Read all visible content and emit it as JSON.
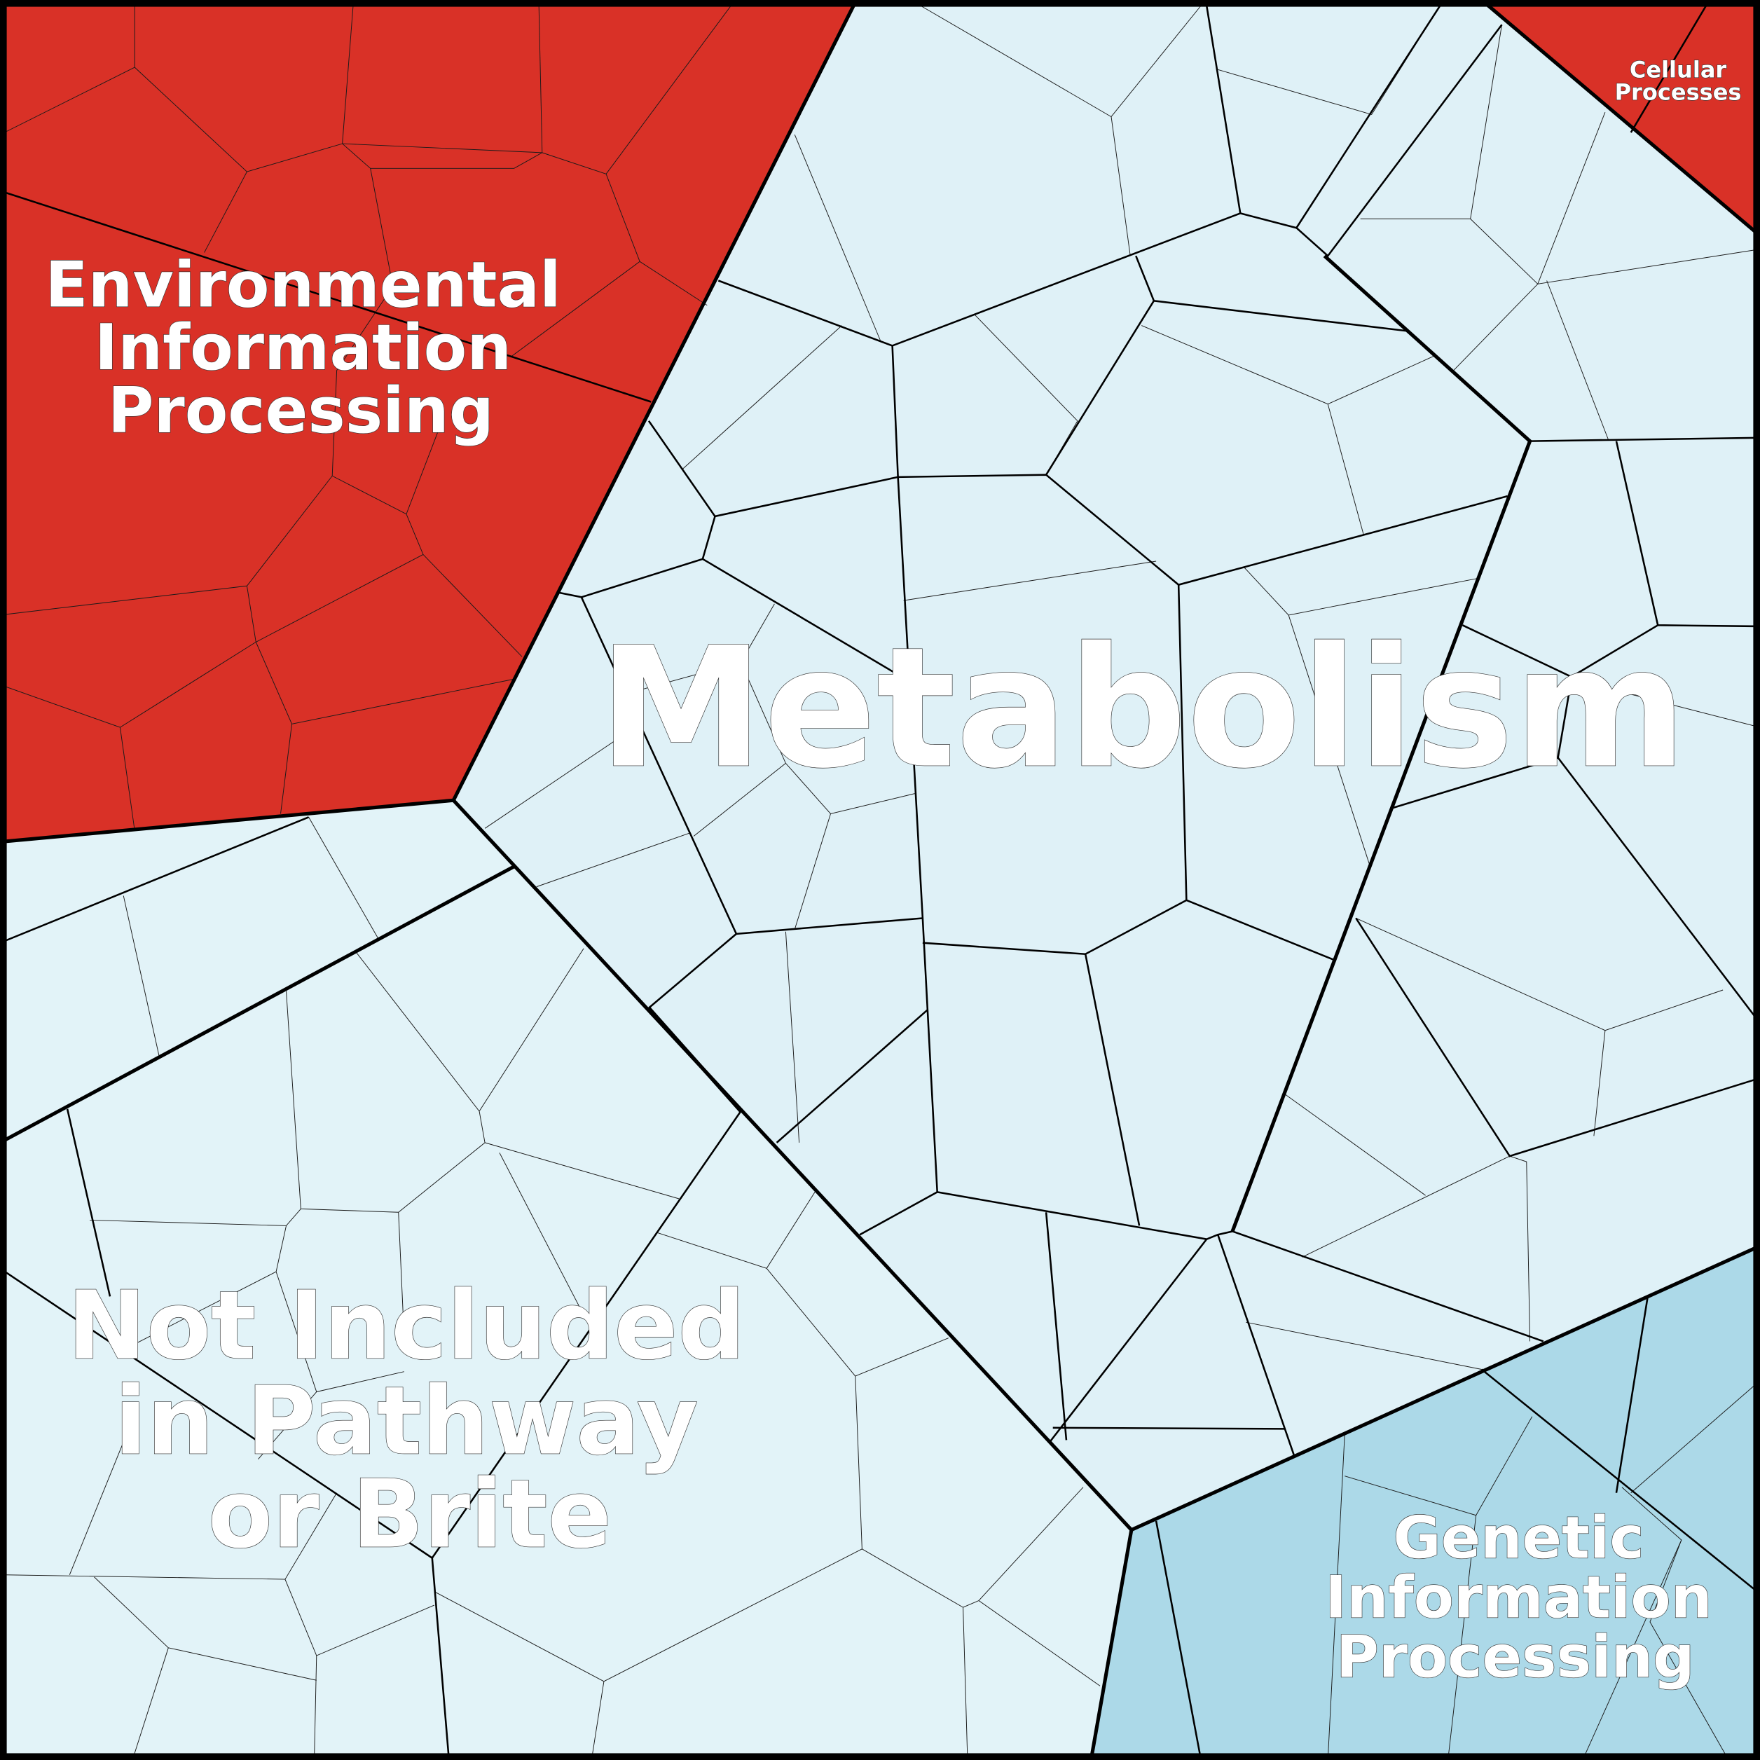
{
  "diagram": {
    "type": "voronoi-treemap",
    "regions": [
      {
        "id": "metabolism",
        "label": "Metabolism",
        "color": "#dff1f7"
      },
      {
        "id": "environmental",
        "label_lines": [
          "Environmental",
          "Information",
          "Processing"
        ],
        "color": "#d93127"
      },
      {
        "id": "not-included",
        "label_lines": [
          "Not Included",
          "in Pathway",
          "or Brite"
        ],
        "color": "#e2f3f8"
      },
      {
        "id": "genetic",
        "label_lines": [
          "Genetic",
          "Information",
          "Processing"
        ],
        "color": "#acd9e8"
      },
      {
        "id": "cellular",
        "label_lines": [
          "Cellular",
          "Processes"
        ],
        "color": "#d93127"
      }
    ],
    "border_color": "#000000"
  }
}
